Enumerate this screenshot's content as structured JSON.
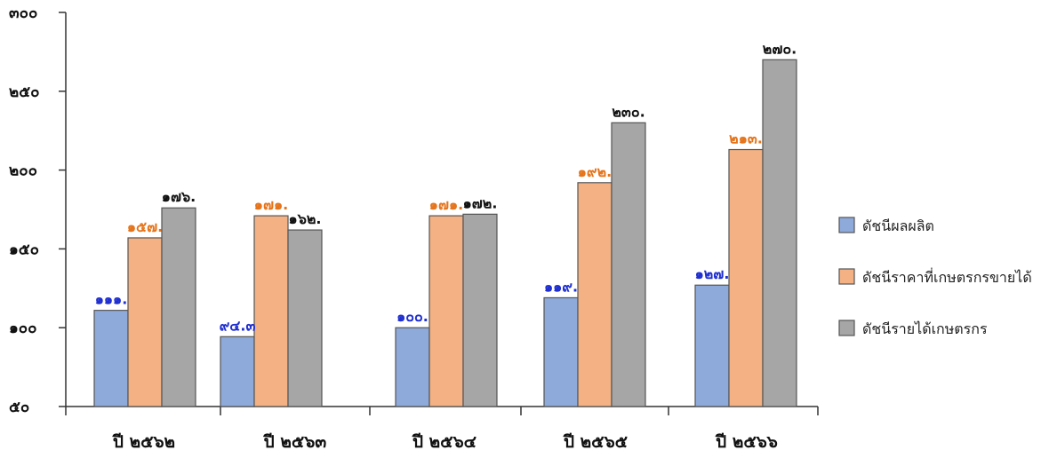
{
  "chart_data": {
    "type": "bar",
    "title": "",
    "xlabel": "",
    "ylabel": "",
    "ylim": [
      50,
      300
    ],
    "yticks": [
      50,
      100,
      150,
      200,
      250,
      300
    ],
    "ytick_labels": [
      "๕๐",
      "๑๐๐",
      "๑๕๐",
      "๒๐๐",
      "๒๕๐",
      "๓๐๐"
    ],
    "categories": [
      "ปี ๒๕๖๒",
      "ปี ๒๕๖๓",
      "ปี ๒๕๖๔",
      "ปี ๒๕๖๕",
      "ปี ๒๕๖๖"
    ],
    "legend_position": "right",
    "grid": false,
    "series": [
      {
        "name": "ดัชนีผลผลิต",
        "color": "#8EAADB",
        "label_color": "#1F2FD0",
        "values": [
          111,
          94.3,
          100,
          119,
          127
        ],
        "labels": [
          "๑๑๑.",
          "๙๔.๓",
          "๑๐๐.",
          "๑๑๙.",
          "๑๒๗."
        ]
      },
      {
        "name": "ดัชนีราคาที่เกษตรกรขายได้",
        "color": "#F4B183",
        "label_color": "#E5741B",
        "values": [
          157,
          171,
          171,
          192,
          213
        ],
        "labels": [
          "๑๕๗.",
          "๑๗๑.",
          "๑๗๑.",
          "๑๙๒.",
          "๒๑๓."
        ]
      },
      {
        "name": "ดัชนีรายได้เกษตรกร",
        "color": "#A6A6A6",
        "label_color": "#111111",
        "values": [
          176,
          162,
          172,
          230,
          270
        ],
        "labels": [
          "๑๗๖.",
          "๑๖๒.",
          "๑๗๒.",
          "๒๓๐.",
          "๒๗๐."
        ]
      }
    ]
  }
}
